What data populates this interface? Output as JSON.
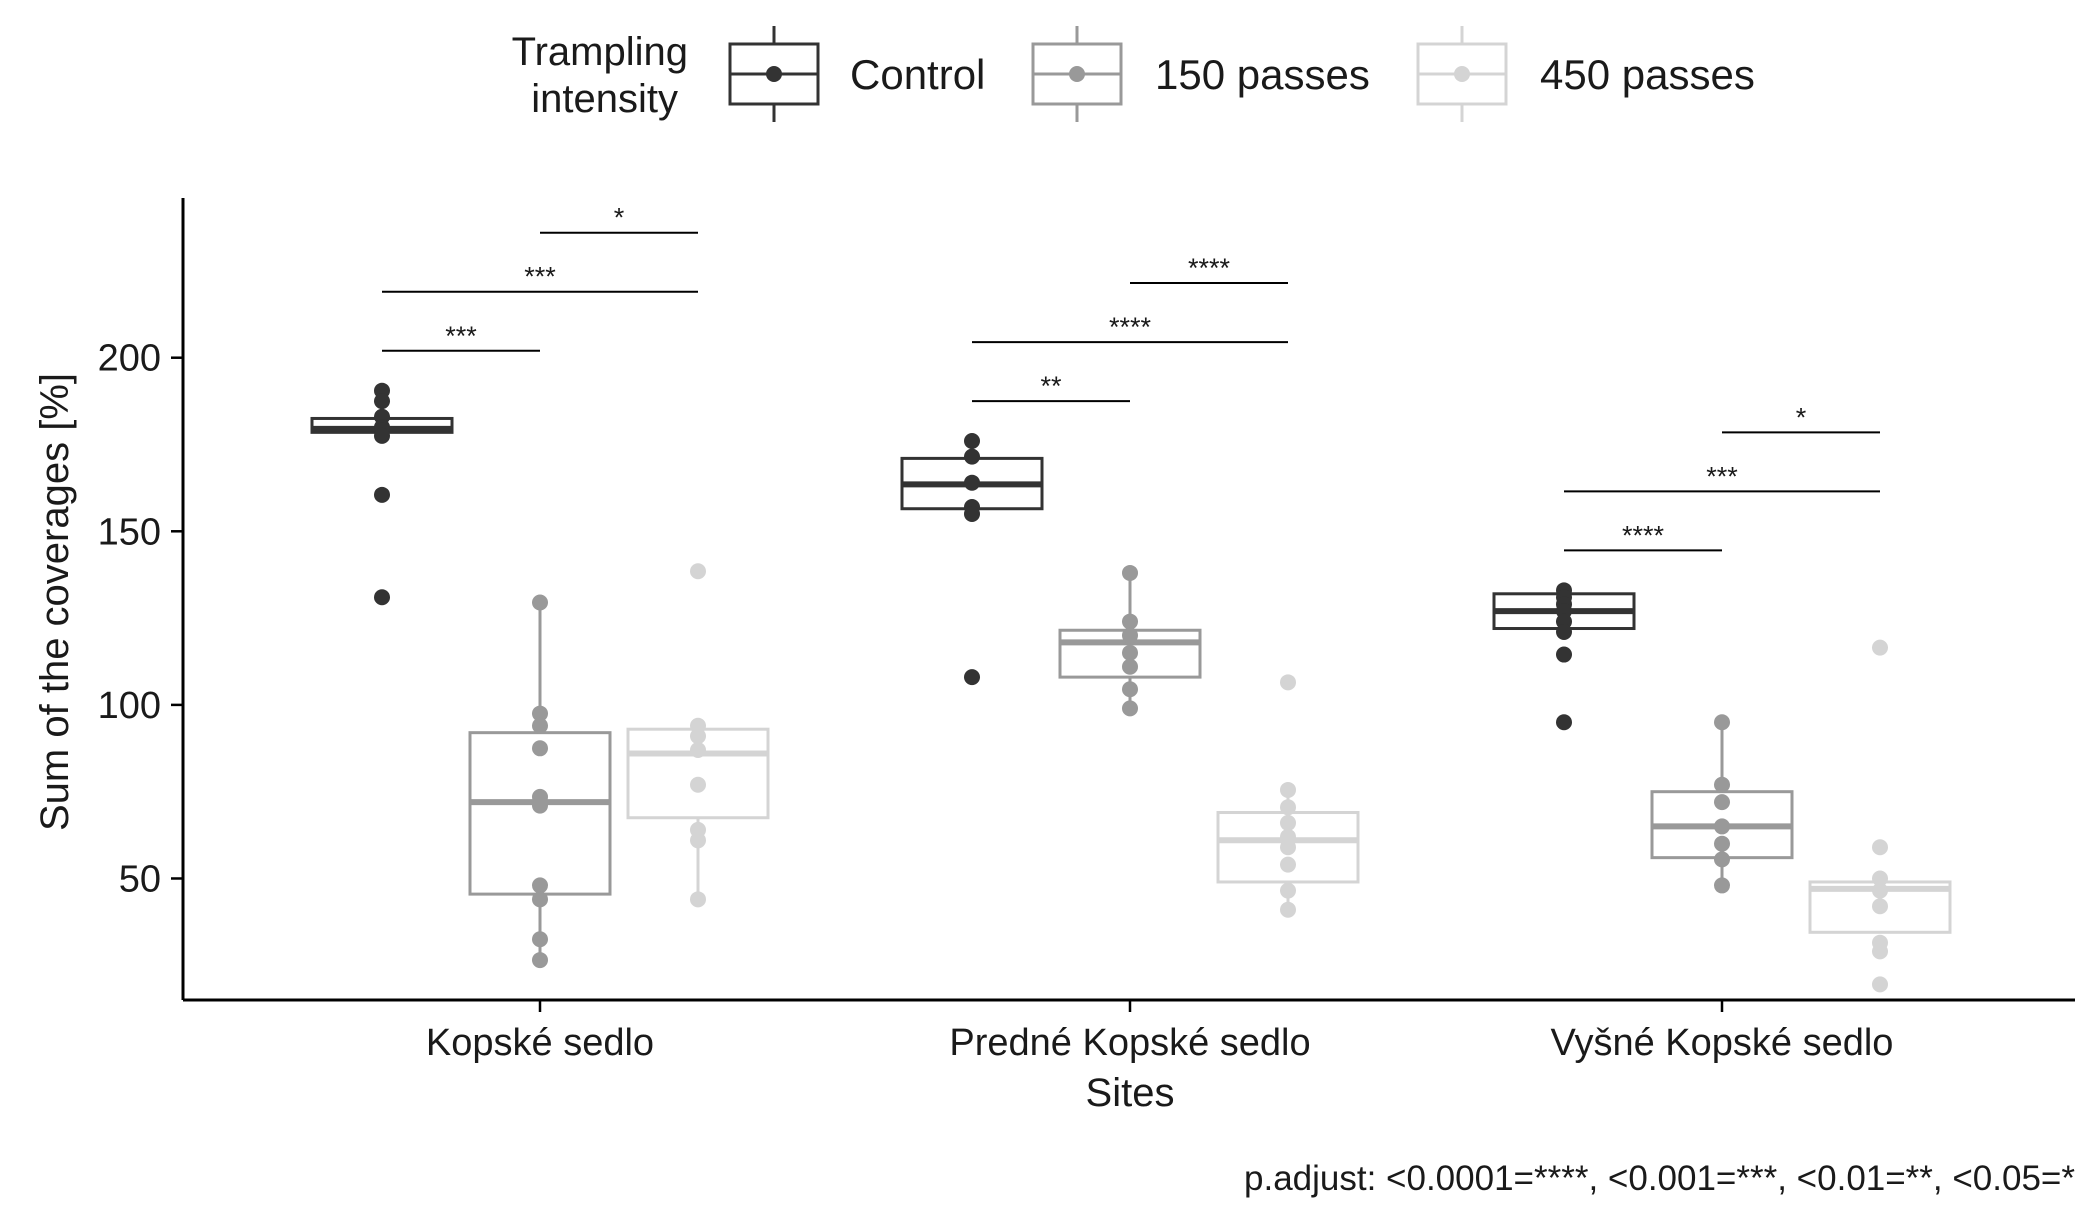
{
  "chart_data": {
    "type": "box",
    "title": "",
    "xlabel": "Sites",
    "ylabel": "Sum of the coverages [%]",
    "ylim": [
      15,
      246
    ],
    "yticks": [
      50,
      100,
      150,
      200
    ],
    "categories": [
      "Kopské sedlo",
      "Predné Kopské sedlo",
      "Vyšné Kopské sedlo"
    ],
    "legend": {
      "title_lines": [
        "Trampling",
        "intensity"
      ],
      "position": "top"
    },
    "series": [
      {
        "name": "Control",
        "color": "#333333",
        "boxes": [
          {
            "q1": 178.5,
            "median": 179.5,
            "q3": 182.5,
            "whisker_low": 178.5,
            "whisker_high": 182.5,
            "points": [
              190.5,
              187.5,
              183,
              180,
              179,
              177.5,
              160.5,
              131
            ]
          },
          {
            "q1": 156.5,
            "median": 163.5,
            "q3": 171,
            "whisker_low": 155,
            "whisker_high": 176,
            "points": [
              176,
              171.5,
              164,
              157,
              155,
              108
            ]
          },
          {
            "q1": 122,
            "median": 127,
            "q3": 132,
            "whisker_low": 122,
            "whisker_high": 132,
            "points": [
              133,
              131,
              129,
              127,
              124,
              121,
              114.5,
              95
            ]
          }
        ]
      },
      {
        "name": "150 passes",
        "color": "#999999",
        "boxes": [
          {
            "q1": 45.5,
            "median": 72,
            "q3": 92,
            "whisker_low": 26,
            "whisker_high": 129.5,
            "points": [
              129.5,
              97.5,
              94,
              87.5,
              73.5,
              71,
              48,
              44,
              32.5,
              26.5
            ]
          },
          {
            "q1": 108,
            "median": 118,
            "q3": 121.5,
            "whisker_low": 99,
            "whisker_high": 138,
            "points": [
              138,
              124,
              120,
              115,
              111,
              104.5,
              99
            ]
          },
          {
            "q1": 56,
            "median": 65,
            "q3": 75,
            "whisker_low": 48,
            "whisker_high": 95,
            "points": [
              95,
              77,
              72,
              65,
              60,
              55.5,
              48
            ]
          }
        ]
      },
      {
        "name": "450 passes",
        "color": "#d4d4d4",
        "boxes": [
          {
            "q1": 67.5,
            "median": 86,
            "q3": 93,
            "whisker_low": 44,
            "whisker_high": 93,
            "points": [
              138.5,
              94,
              91,
              87,
              77,
              64,
              61,
              44
            ]
          },
          {
            "q1": 49,
            "median": 61,
            "q3": 69,
            "whisker_low": 41,
            "whisker_high": 75.5,
            "points": [
              106.5,
              75.5,
              70.5,
              66,
              62,
              59,
              54,
              46.5,
              41
            ]
          },
          {
            "q1": 34.5,
            "median": 47,
            "q3": 49,
            "whisker_low": 34.5,
            "whisker_high": 49,
            "points": [
              116.5,
              59,
              50,
              46.5,
              42,
              31.5,
              29,
              19.5
            ]
          }
        ]
      }
    ],
    "significance": [
      {
        "site": 0,
        "from": 0,
        "to": 1,
        "label": "***",
        "y": 202
      },
      {
        "site": 0,
        "from": 0,
        "to": 2,
        "label": "***",
        "y": 219
      },
      {
        "site": 0,
        "from": 1,
        "to": 2,
        "label": "*",
        "y": 236
      },
      {
        "site": 1,
        "from": 0,
        "to": 1,
        "label": "**",
        "y": 187.5
      },
      {
        "site": 1,
        "from": 0,
        "to": 2,
        "label": "****",
        "y": 204.5
      },
      {
        "site": 1,
        "from": 1,
        "to": 2,
        "label": "****",
        "y": 221.5
      },
      {
        "site": 2,
        "from": 0,
        "to": 1,
        "label": "****",
        "y": 144.5
      },
      {
        "site": 2,
        "from": 0,
        "to": 2,
        "label": "***",
        "y": 161.5
      },
      {
        "site": 2,
        "from": 1,
        "to": 2,
        "label": "*",
        "y": 178.5
      }
    ],
    "caption": "p.adjust: <0.0001=****, <0.001=***, <0.01=**, <0.05=*"
  }
}
